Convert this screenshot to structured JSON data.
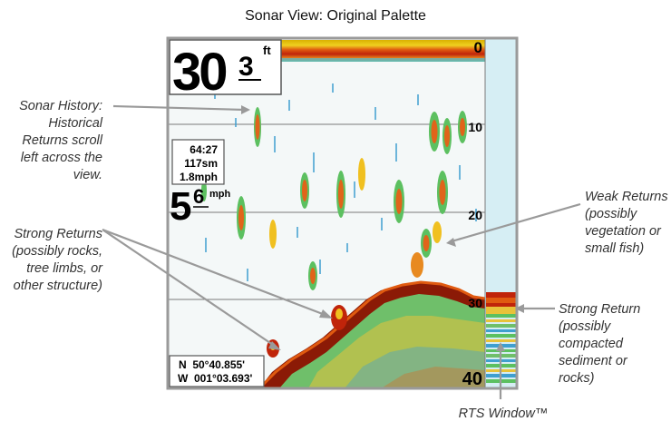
{
  "title": "Sonar View: Original Palette",
  "display": {
    "depth_value": "30",
    "depth_decimal": "3",
    "depth_unit": "ft",
    "info_box": {
      "line1": "64:27",
      "line2": "117sm",
      "line3": "1.8mph"
    },
    "speed_value": "5",
    "speed_decimal": "6",
    "speed_unit": "mph",
    "position": {
      "lat": "N  50°40.855'",
      "lon": "W  001°03.693'"
    },
    "depth_scale": [
      "0",
      "10",
      "20",
      "30",
      "40"
    ]
  },
  "callouts": {
    "sonar_history": "Sonar History:\nHistorical\nReturns scroll\nleft across the\nview.",
    "strong_returns": "Strong Returns\n(possibly rocks,\ntree limbs, or\nother structure)",
    "weak_returns": "Weak Returns\n(possibly\nvegetation or\nsmall fish)",
    "strong_return": "Strong Return\n(possibly\ncompacted\nsediment or\nrocks)",
    "rts_window": "RTS Window™"
  },
  "colors": {
    "frame": "#9a9a9a",
    "bottom_dark": "#8b1a06",
    "bottom_red": "#d8320c",
    "strong": "#e0641a",
    "medium": "#f0c020",
    "weak": "#3f9fd0",
    "green": "#5cc060",
    "rts_bg": "#d6eef4"
  }
}
